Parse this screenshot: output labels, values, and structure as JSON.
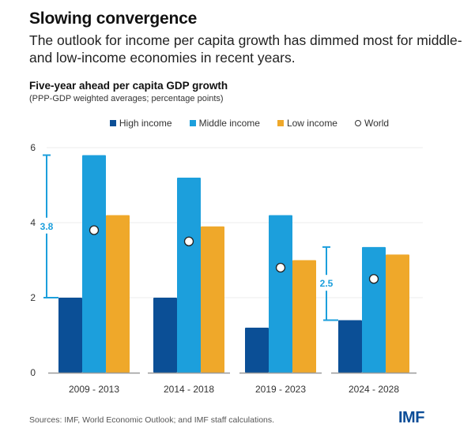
{
  "header": {
    "title": "Slowing convergence",
    "subtitle": "The outlook for income per capita growth has dimmed most for middle- and low-income economies in recent years."
  },
  "footer": {
    "sources": "Sources: IMF, World Economic Outlook; and IMF staff calculations.",
    "logo": "IMF"
  },
  "colors": {
    "high": "#0b4f96",
    "middle": "#1c9fdc",
    "low": "#efa82a",
    "annotation": "#1c9fdc",
    "grid": "#eeeeee",
    "axis": "#999999"
  },
  "chart_data": {
    "type": "bar",
    "title": "Five-year ahead per capita GDP growth",
    "subtitle": "(PPP-GDP weighted averages; percentage points)",
    "xlabel": "",
    "ylabel": "",
    "ylim": [
      0,
      6
    ],
    "yticks": [
      "0",
      "2",
      "4",
      "6"
    ],
    "grid": true,
    "legend_position": "top-center",
    "categories": [
      "2009 - 2013",
      "2014 - 2018",
      "2019 - 2023",
      "2024 - 2028"
    ],
    "series": [
      {
        "name": "High income",
        "key": "high",
        "values": [
          2.0,
          2.0,
          1.2,
          1.4
        ]
      },
      {
        "name": "Middle income",
        "key": "middle",
        "values": [
          5.8,
          5.2,
          4.2,
          3.35
        ]
      },
      {
        "name": "Low income",
        "key": "low",
        "values": [
          4.2,
          3.9,
          3.0,
          3.15
        ]
      }
    ],
    "world": {
      "name": "World",
      "values": [
        3.8,
        3.5,
        2.8,
        2.5
      ]
    },
    "annotations": [
      {
        "category_index": 0,
        "label": "3.8",
        "from": 2.0,
        "to": 5.8
      },
      {
        "category_index": 3,
        "label": "2.5",
        "from": 1.4,
        "to": 3.35
      }
    ]
  }
}
